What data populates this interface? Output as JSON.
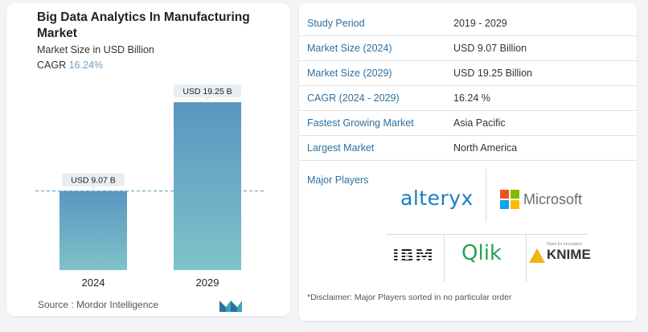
{
  "title": "Big Data Analytics In Manufacturing Market",
  "subtitle": "Market Size in USD Billion",
  "cagr_label": "CAGR",
  "cagr_value": "16.24%",
  "source": "Source : Mordor Intelligence",
  "colors": {
    "bar_top": "#5b95c1",
    "bar_bottom": "#7fc3c9",
    "accent": "#2f6f9f",
    "dashed": "#5b95c1"
  },
  "chart_data": {
    "type": "bar",
    "categories": [
      "2024",
      "2029"
    ],
    "values": [
      9.07,
      19.25
    ],
    "value_labels": [
      "USD 9.07 B",
      "USD 19.25 B"
    ],
    "ylim": [
      0,
      20
    ],
    "reference_line": 9.07,
    "grid": false
  },
  "stats": [
    {
      "label": "Study Period",
      "value": "2019 - 2029"
    },
    {
      "label": "Market Size (2024)",
      "value": "USD 9.07 Billion"
    },
    {
      "label": "Market Size (2029)",
      "value": "USD 19.25 Billion"
    },
    {
      "label": "CAGR (2024 - 2029)",
      "value": "16.24 %"
    },
    {
      "label": "Fastest Growing Market",
      "value": "Asia Pacific"
    },
    {
      "label": "Largest Market",
      "value": "North America"
    }
  ],
  "major_players": {
    "label": "Major Players",
    "logos": [
      "alteryx",
      "Microsoft",
      "IBM",
      "Qlik",
      "KNIME"
    ],
    "knime_tagline": "Open for Innovation"
  },
  "disclaimer": "*Disclaimer: Major Players sorted in no particular order"
}
